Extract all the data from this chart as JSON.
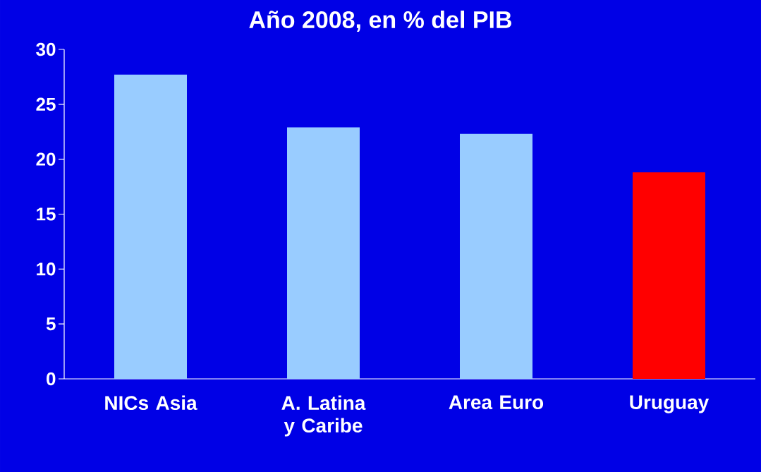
{
  "chart_data": {
    "type": "bar",
    "title": "Año 2008, en % del PIB",
    "categories": [
      "NICs Asia",
      "A. Latina y Caribe",
      "Area Euro",
      "Uruguay"
    ],
    "values": [
      27.7,
      22.9,
      22.3,
      18.8
    ],
    "colors": [
      "#99ccff",
      "#99ccff",
      "#99ccff",
      "#ff0000"
    ],
    "ylim": [
      0,
      30
    ],
    "yticks": [
      0,
      5,
      10,
      15,
      20,
      25,
      30
    ]
  }
}
